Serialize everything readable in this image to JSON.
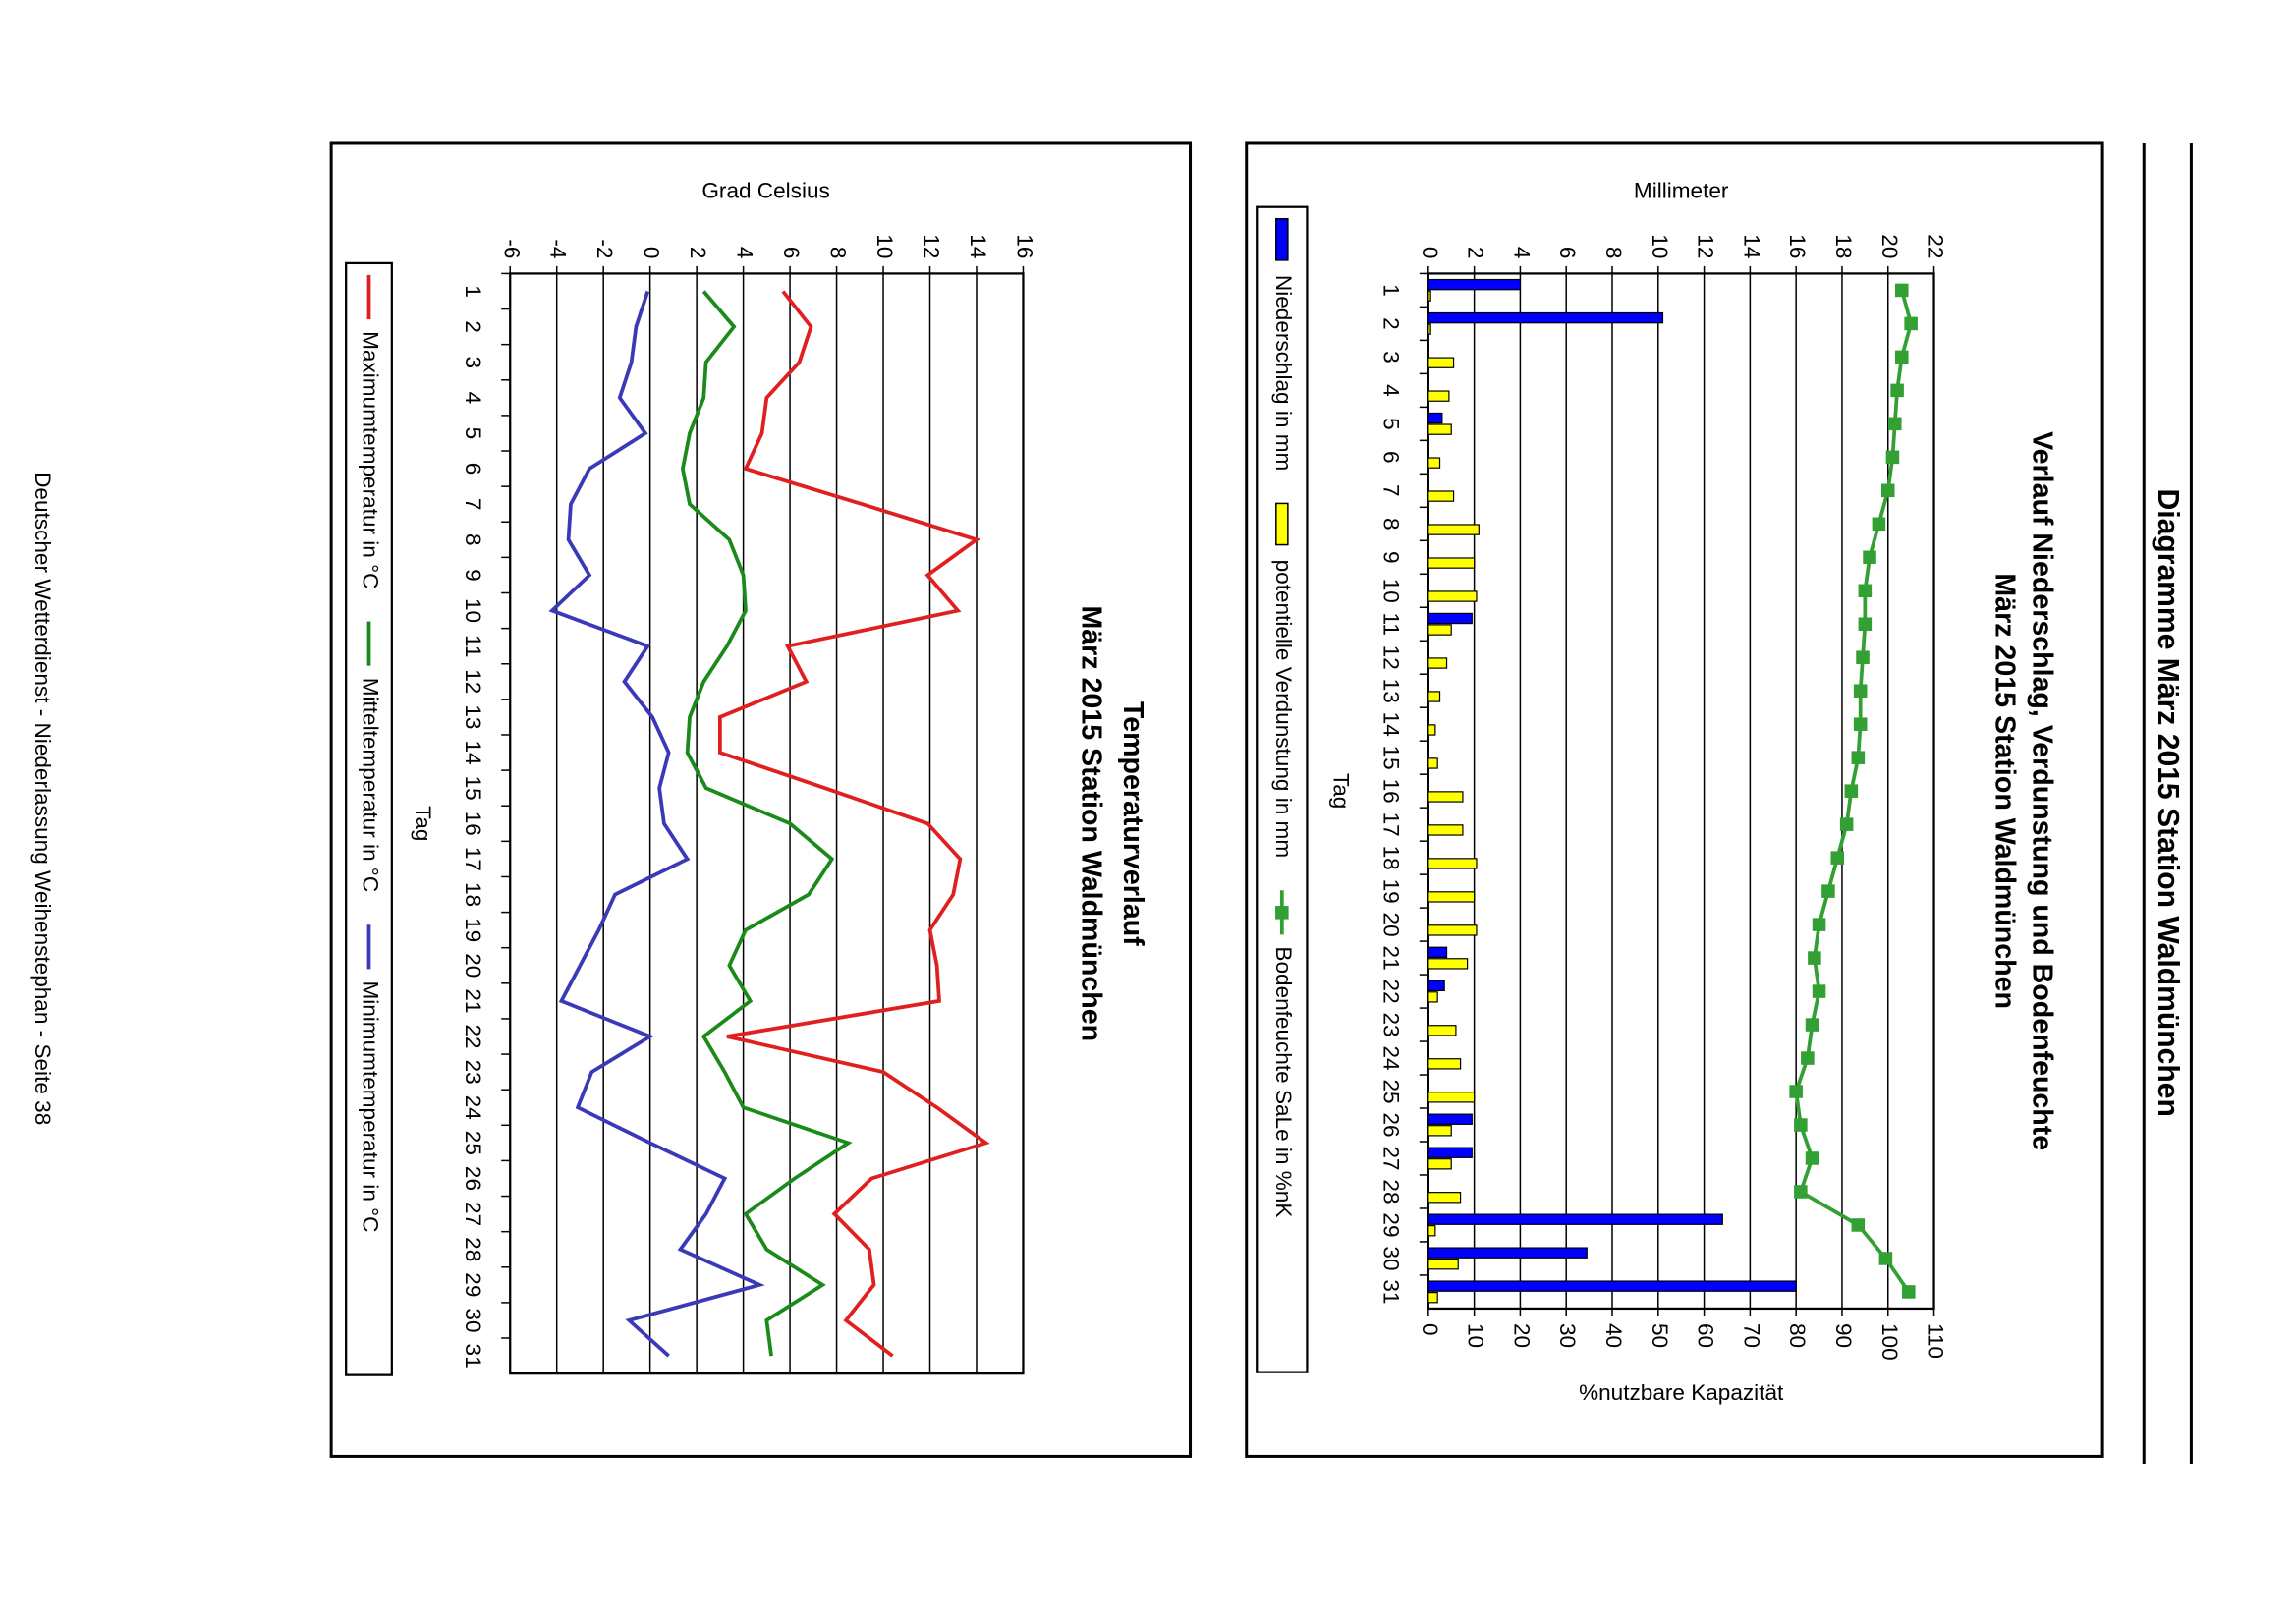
{
  "header": {
    "title": "Diagramme März 2015 Station Waldmünchen"
  },
  "footer": {
    "text": "Deutscher Wetterdienst - Niederlassung Weihenstephan - Seite 38"
  },
  "chart_data": [
    {
      "type": "bar",
      "title": "Verlauf Niederschlag, Verdunstung und Bodenfeuchte",
      "subtitle": "März 2015 Station Waldmünchen",
      "ylabel": "Millimeter",
      "y2label": "%nutzbare Kapazität",
      "xlabel": "Tag",
      "categories": [
        "1",
        "2",
        "3",
        "4",
        "5",
        "6",
        "7",
        "8",
        "9",
        "10",
        "11",
        "12",
        "13",
        "14",
        "15",
        "16",
        "17",
        "18",
        "19",
        "20",
        "21",
        "22",
        "23",
        "24",
        "25",
        "26",
        "27",
        "28",
        "29",
        "30",
        "31"
      ],
      "ylim": [
        0,
        22
      ],
      "yticks": [
        0,
        2,
        4,
        6,
        8,
        10,
        12,
        14,
        16,
        18,
        20,
        22
      ],
      "y2lim": [
        0,
        110
      ],
      "y2ticks": [
        0,
        10,
        20,
        30,
        40,
        50,
        60,
        70,
        80,
        90,
        100,
        110
      ],
      "grid": true,
      "series": [
        {
          "name": "Niederschlag in mm",
          "color": "#0000ff",
          "type": "bar",
          "values": [
            4.0,
            10.2,
            0,
            0,
            0.6,
            0,
            0,
            0,
            0,
            0,
            1.9,
            0,
            0,
            0,
            0,
            0,
            0,
            0,
            0,
            0,
            0.8,
            0.7,
            0,
            0,
            0,
            1.9,
            1.9,
            0,
            12.8,
            6.9,
            16.0
          ]
        },
        {
          "name": "potentielle Verdunstung in mm",
          "color": "#ffff00",
          "type": "bar",
          "values": [
            0.1,
            0.1,
            1.1,
            0.9,
            1.0,
            0.5,
            1.1,
            2.2,
            2.0,
            2.1,
            1.0,
            0.8,
            0.5,
            0.3,
            0.4,
            1.5,
            1.5,
            2.1,
            2.0,
            2.1,
            1.7,
            0.4,
            1.2,
            1.4,
            2.0,
            1.0,
            1.0,
            1.4,
            0.3,
            1.3,
            0.4
          ]
        },
        {
          "name": "Bodenfeuchte SaLe in %nK",
          "color": "#33a033",
          "type": "line",
          "axis": "y2",
          "marker": "square",
          "values": [
            103,
            105,
            103,
            102,
            101.5,
            101,
            100,
            98,
            96,
            95,
            95,
            94.5,
            94,
            94,
            93.5,
            92,
            91,
            89,
            87,
            85,
            84,
            85,
            83.5,
            82.5,
            80,
            81,
            83.5,
            81,
            93.5,
            99.5,
            104.5
          ]
        }
      ]
    },
    {
      "type": "line",
      "title": "Temperaturverlauf",
      "subtitle": "März 2015 Station Waldmünchen",
      "ylabel": "Grad Celsius",
      "xlabel": "Tag",
      "categories": [
        "1",
        "2",
        "3",
        "4",
        "5",
        "6",
        "7",
        "8",
        "9",
        "10",
        "11",
        "12",
        "13",
        "14",
        "15",
        "16",
        "17",
        "18",
        "19",
        "20",
        "21",
        "22",
        "23",
        "24",
        "25",
        "26",
        "27",
        "28",
        "29",
        "30",
        "31"
      ],
      "ylim": [
        -6,
        16
      ],
      "yticks": [
        -6,
        -4,
        -2,
        0,
        2,
        4,
        6,
        8,
        10,
        12,
        14,
        16
      ],
      "grid": true,
      "series": [
        {
          "name": "Maximumtemperatur in °C",
          "color": "#e02020",
          "values": [
            5.7,
            6.9,
            6.4,
            5.0,
            4.8,
            4.1,
            9.1,
            14.0,
            11.9,
            13.2,
            5.9,
            6.7,
            3.0,
            3.0,
            7.5,
            11.9,
            13.3,
            13.0,
            12.0,
            12.3,
            12.4,
            3.3,
            10.0,
            12.3,
            14.4,
            9.5,
            7.9,
            9.4,
            9.6,
            8.4,
            10.4
          ]
        },
        {
          "name": "Mitteltemperatur in °C",
          "color": "#1a8a1a",
          "values": [
            2.3,
            3.6,
            2.4,
            2.3,
            1.7,
            1.4,
            1.7,
            3.4,
            4.0,
            4.1,
            3.3,
            2.3,
            1.7,
            1.6,
            2.4,
            6.0,
            7.8,
            6.8,
            4.1,
            3.4,
            4.3,
            2.3,
            3.2,
            4.0,
            8.5,
            6.2,
            4.1,
            5.0,
            7.4,
            5.0,
            5.2
          ]
        },
        {
          "name": "Minimumtemperatur in °C",
          "color": "#3a3ab8",
          "values": [
            -0.1,
            -0.6,
            -0.8,
            -1.3,
            -0.2,
            -2.6,
            -3.4,
            -3.5,
            -2.6,
            -4.2,
            -0.1,
            -1.1,
            0.1,
            0.8,
            0.4,
            0.6,
            1.6,
            -1.5,
            -2.2,
            -3.0,
            -3.8,
            0.0,
            -2.5,
            -3.1,
            0.0,
            3.2,
            2.4,
            1.3,
            4.7,
            -0.9,
            0.8
          ]
        }
      ]
    }
  ]
}
